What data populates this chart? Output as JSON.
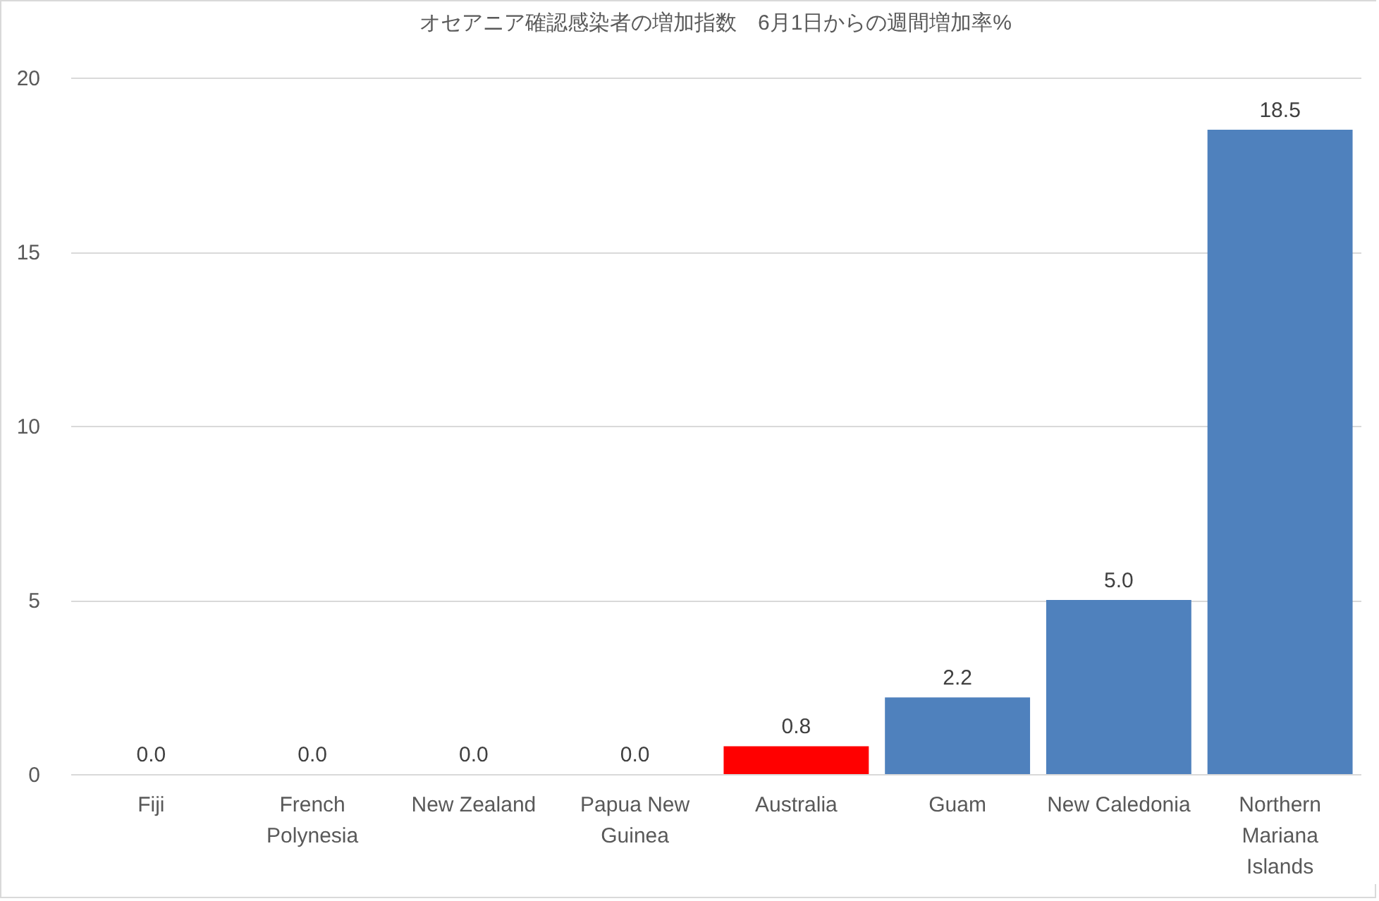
{
  "chart_data": {
    "type": "bar",
    "title": "オセアニア確認感染者の増加指数　6月1日からの週間増加率%",
    "categories": [
      "Fiji",
      "French Polynesia",
      "New Zealand",
      "Papua New Guinea",
      "Australia",
      "Guam",
      "New Caledonia",
      "Northern Mariana Islands"
    ],
    "values": [
      0,
      0,
      0,
      0,
      0.8,
      2.2,
      5.0,
      18.5
    ],
    "colors": [
      "#4f81bd",
      "#4f81bd",
      "#4f81bd",
      "#4f81bd",
      "#ff0000",
      "#4f81bd",
      "#4f81bd",
      "#4f81bd"
    ],
    "value_labels": [
      "0.0",
      "0.0",
      "0.0",
      "0.0",
      "0.8",
      "2.2",
      "5.0",
      "18.5"
    ],
    "ylim": [
      0,
      20
    ],
    "yticks": [
      0,
      5,
      10,
      15,
      20
    ],
    "grid": "y"
  }
}
